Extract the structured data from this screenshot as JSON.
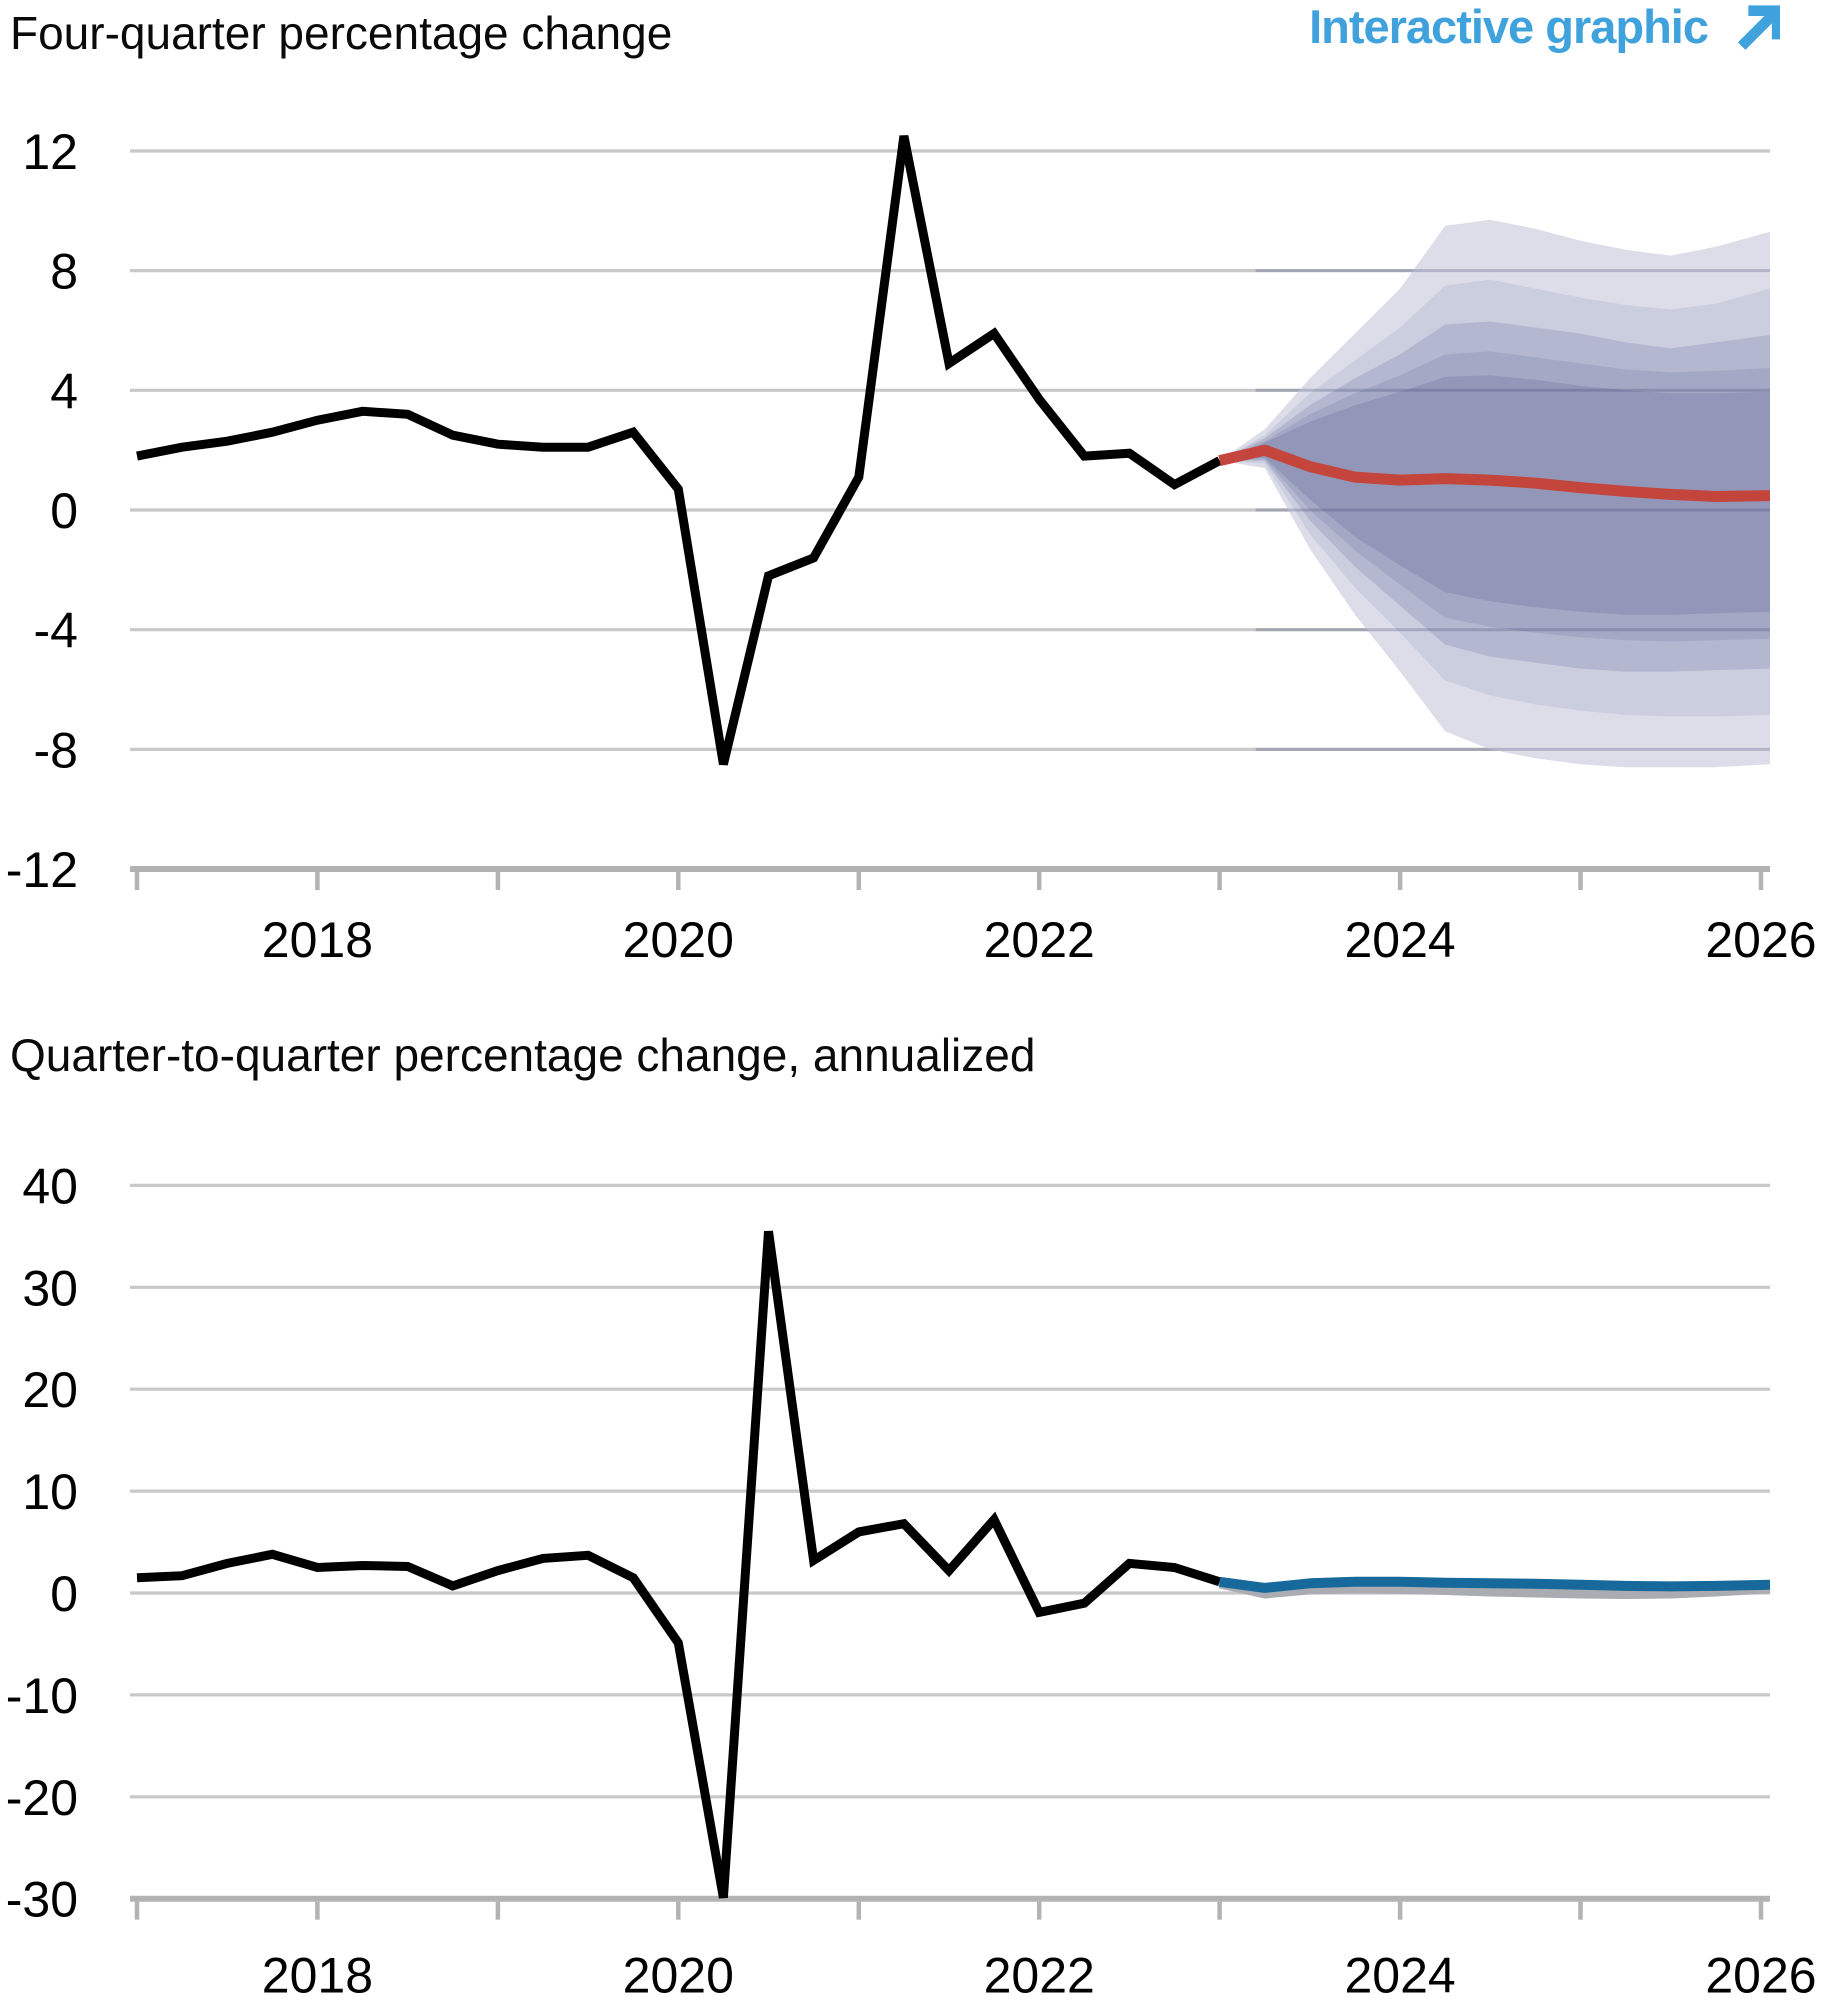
{
  "header": {
    "interactive_label": "Interactive graphic",
    "interactive_color": "#3fa2dc"
  },
  "colors": {
    "gridline": "#c8c8c8",
    "axis": "#b3b3b3",
    "tick": "#b3b3b3",
    "label_text": "#000000",
    "band_overlay_grid": "rgba(70,76,120,0.28)"
  },
  "chart_data": [
    {
      "type": "line",
      "title": "Four-quarter percentage change",
      "ylabel": "",
      "xlabel": "",
      "ylim": [
        -12,
        13.4
      ],
      "gridline_values": [
        12,
        8,
        4,
        0,
        -4,
        -8
      ],
      "axis_value": -12,
      "x_tick_years": [
        2017,
        2018,
        2019,
        2020,
        2021,
        2022,
        2023,
        2024,
        2025,
        2026
      ],
      "x_label_years": [
        2018,
        2020,
        2022,
        2024,
        2026
      ],
      "grid_on": true,
      "legend_position": "none",
      "historical": {
        "name": "actual-gdp-four-quarter",
        "color": "#000000",
        "x": [
          2017.0,
          2017.25,
          2017.5,
          2017.75,
          2018.0,
          2018.25,
          2018.5,
          2018.75,
          2019.0,
          2019.25,
          2019.5,
          2019.75,
          2020.0,
          2020.25,
          2020.5,
          2020.75,
          2021.0,
          2021.25,
          2021.5,
          2021.75,
          2022.0,
          2022.25,
          2022.5,
          2022.75,
          2023.0
        ],
        "values": [
          1.8,
          2.1,
          2.3,
          2.6,
          3.0,
          3.3,
          3.2,
          2.5,
          2.2,
          2.1,
          2.1,
          2.6,
          0.7,
          -8.5,
          -2.2,
          -1.6,
          1.1,
          12.5,
          4.9,
          5.9,
          3.7,
          1.8,
          1.9,
          0.85,
          1.65
        ]
      },
      "forecast": {
        "name": "mean-forecast-four-quarter",
        "color": "#c4453b",
        "x": [
          2023.0,
          2023.25,
          2023.5,
          2023.75,
          2024.0,
          2024.25,
          2024.5,
          2024.75,
          2025.0,
          2025.25,
          2025.5,
          2025.75,
          2026.05
        ],
        "values": [
          1.65,
          2.0,
          1.45,
          1.1,
          1.0,
          1.05,
          1.0,
          0.9,
          0.75,
          0.62,
          0.52,
          0.45,
          0.48
        ]
      },
      "bands": [
        {
          "percent": 90,
          "color": "#dcdde9",
          "top": [
            1.65,
            2.7,
            4.4,
            5.9,
            7.4,
            9.5,
            9.7,
            9.4,
            9.0,
            8.7,
            8.5,
            8.8,
            9.3
          ],
          "bottom": [
            1.65,
            1.4,
            -1.3,
            -3.5,
            -5.4,
            -7.4,
            -8.0,
            -8.3,
            -8.5,
            -8.6,
            -8.6,
            -8.6,
            -8.5
          ]
        },
        {
          "percent": 80,
          "color": "#cbcedf",
          "top": [
            1.65,
            2.5,
            3.9,
            5.0,
            6.1,
            7.5,
            7.7,
            7.4,
            7.1,
            6.85,
            6.7,
            6.9,
            7.4
          ],
          "bottom": [
            1.65,
            1.55,
            -0.8,
            -2.6,
            -4.1,
            -5.7,
            -6.2,
            -6.5,
            -6.7,
            -6.85,
            -6.9,
            -6.9,
            -6.85
          ]
        },
        {
          "percent": 70,
          "color": "#b3b7cf",
          "top": [
            1.65,
            2.4,
            3.5,
            4.4,
            5.2,
            6.2,
            6.3,
            6.1,
            5.9,
            5.6,
            5.4,
            5.6,
            5.85
          ],
          "bottom": [
            1.65,
            1.65,
            -0.35,
            -1.9,
            -3.2,
            -4.5,
            -4.9,
            -5.1,
            -5.3,
            -5.4,
            -5.4,
            -5.35,
            -5.3
          ]
        },
        {
          "percent": 60,
          "color": "#a3a8c4",
          "top": [
            1.65,
            2.3,
            3.2,
            3.9,
            4.5,
            5.2,
            5.3,
            5.1,
            4.9,
            4.7,
            4.6,
            4.65,
            4.75
          ],
          "bottom": [
            1.65,
            1.7,
            0.0,
            -1.35,
            -2.5,
            -3.6,
            -3.9,
            -4.1,
            -4.25,
            -4.35,
            -4.4,
            -4.35,
            -4.3
          ]
        },
        {
          "percent": 50,
          "color": "#9297ba",
          "top": [
            1.65,
            2.25,
            2.95,
            3.5,
            3.95,
            4.45,
            4.5,
            4.35,
            4.15,
            4.0,
            3.9,
            3.9,
            3.95
          ],
          "bottom": [
            1.65,
            1.75,
            0.35,
            -0.9,
            -1.85,
            -2.75,
            -3.05,
            -3.25,
            -3.4,
            -3.5,
            -3.5,
            -3.45,
            -3.4
          ]
        }
      ]
    },
    {
      "type": "line",
      "title": "Quarter-to-quarter percentage change, annualized",
      "ylabel": "",
      "xlabel": "",
      "ylim": [
        -30,
        44
      ],
      "gridline_values": [
        40,
        30,
        20,
        10,
        0,
        -10,
        -20
      ],
      "axis_value": -30,
      "x_tick_years": [
        2017,
        2018,
        2019,
        2020,
        2021,
        2022,
        2023,
        2024,
        2025,
        2026
      ],
      "x_label_years": [
        2018,
        2020,
        2022,
        2024,
        2026
      ],
      "grid_on": true,
      "legend_position": "none",
      "historical": {
        "name": "actual-gdp-quarterly-annualized",
        "color": "#000000",
        "x": [
          2017.0,
          2017.25,
          2017.5,
          2017.75,
          2018.0,
          2018.25,
          2018.5,
          2018.75,
          2019.0,
          2019.25,
          2019.5,
          2019.75,
          2020.0,
          2020.25,
          2020.5,
          2020.75,
          2021.0,
          2021.25,
          2021.5,
          2021.75,
          2022.0,
          2022.25,
          2022.5,
          2022.75,
          2023.0
        ],
        "values": [
          1.5,
          1.7,
          2.9,
          3.8,
          2.5,
          2.7,
          2.6,
          0.7,
          2.2,
          3.4,
          3.7,
          1.5,
          -4.9,
          -29.9,
          35.5,
          3.2,
          6.0,
          6.8,
          2.2,
          7.2,
          -1.9,
          -1.0,
          2.9,
          2.5,
          1.1
        ]
      },
      "previous_forecast": {
        "name": "previous-forecast-quarterly",
        "color": "#abacb1",
        "x": [
          2023.0,
          2023.25,
          2023.5,
          2023.75,
          2024.0,
          2024.25,
          2024.5,
          2024.75,
          2025.0,
          2025.25,
          2025.5,
          2025.75,
          2026.05
        ],
        "values": [
          0.9,
          -0.1,
          0.3,
          0.4,
          0.35,
          0.25,
          0.1,
          0.0,
          -0.1,
          -0.15,
          -0.1,
          0.1,
          0.4
        ]
      },
      "forecast": {
        "name": "mean-forecast-quarterly",
        "color": "#17699b",
        "x": [
          2023.0,
          2023.25,
          2023.5,
          2023.75,
          2024.0,
          2024.25,
          2024.5,
          2024.75,
          2025.0,
          2025.25,
          2025.5,
          2025.75,
          2026.05
        ],
        "values": [
          1.1,
          0.5,
          0.95,
          1.1,
          1.1,
          1.0,
          0.95,
          0.9,
          0.8,
          0.7,
          0.65,
          0.7,
          0.8
        ]
      }
    }
  ]
}
